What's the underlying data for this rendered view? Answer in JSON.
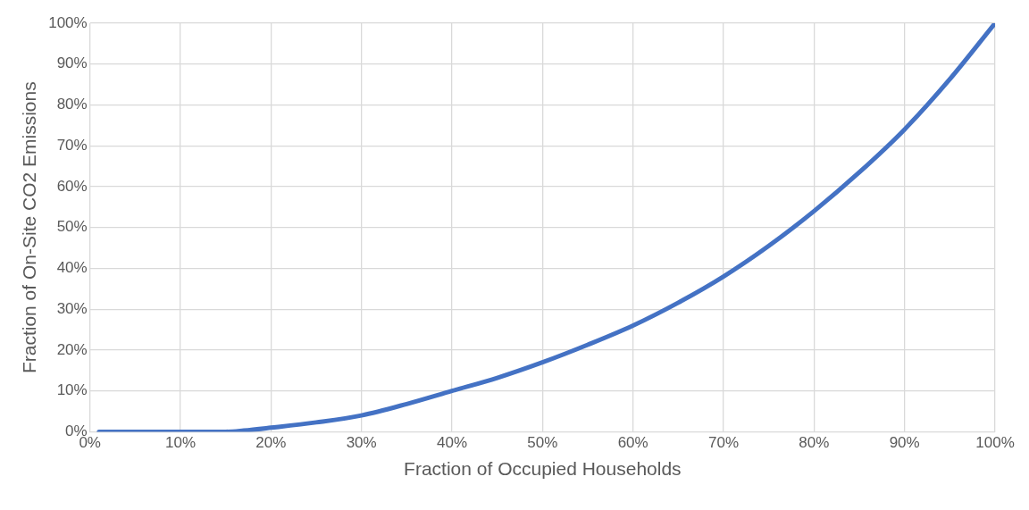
{
  "chart_data": {
    "type": "line",
    "xlabel": "Fraction of Occupied Households",
    "ylabel": "Fraction of On-Site CO2 Emissions",
    "x": [
      1,
      5,
      10,
      15,
      17,
      20,
      25,
      30,
      35,
      40,
      45,
      50,
      55,
      60,
      65,
      70,
      75,
      80,
      85,
      90,
      95,
      100
    ],
    "series": [
      {
        "color": "#4472c4",
        "values": [
          0,
          0,
          0,
          0,
          0.3,
          1,
          2.3,
          4,
          6.8,
          10,
          13.2,
          17,
          21.3,
          26,
          31.6,
          38,
          45.5,
          54,
          63.5,
          74,
          86.3,
          100
        ]
      }
    ],
    "xlim": [
      0,
      100
    ],
    "ylim": [
      0,
      100
    ],
    "xticks": [
      {
        "value": 0,
        "label": "0%"
      },
      {
        "value": 10,
        "label": "10%"
      },
      {
        "value": 20,
        "label": "20%"
      },
      {
        "value": 30,
        "label": "30%"
      },
      {
        "value": 40,
        "label": "40%"
      },
      {
        "value": 50,
        "label": "50%"
      },
      {
        "value": 60,
        "label": "60%"
      },
      {
        "value": 70,
        "label": "70%"
      },
      {
        "value": 80,
        "label": "80%"
      },
      {
        "value": 90,
        "label": "90%"
      },
      {
        "value": 100,
        "label": "100%"
      }
    ],
    "yticks": [
      {
        "value": 0,
        "label": "0%"
      },
      {
        "value": 10,
        "label": "10%"
      },
      {
        "value": 20,
        "label": "20%"
      },
      {
        "value": 30,
        "label": "30%"
      },
      {
        "value": 40,
        "label": "40%"
      },
      {
        "value": 50,
        "label": "50%"
      },
      {
        "value": 60,
        "label": "60%"
      },
      {
        "value": 70,
        "label": "70%"
      },
      {
        "value": 80,
        "label": "80%"
      },
      {
        "value": 90,
        "label": "90%"
      },
      {
        "value": 100,
        "label": "100%"
      }
    ],
    "grid": true,
    "marker": "none",
    "line_style": "solid"
  }
}
